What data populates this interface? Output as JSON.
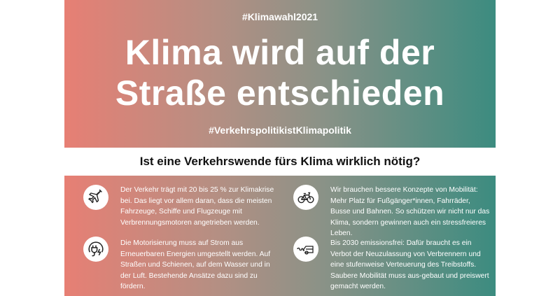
{
  "header": {
    "hashtag_top": "#Klimawahl2021",
    "title_line1": "Klima wird auf der",
    "title_line2": "Straße entschieden",
    "hashtag_bottom": "#VerkehrspolitikistKlimapolitik"
  },
  "banner": {
    "question": "Ist eine Verkehrswende fürs Klima wirklich nötig?"
  },
  "colors": {
    "gradient_left": "#e77f74",
    "gradient_right": "#3c8c80"
  },
  "items": [
    {
      "icon": "airplane-icon",
      "text": "Der Verkehr trägt mit 20 bis 25 % zur Klimakrise bei. Das liegt vor allem daran, dass die meisten Fahrzeuge, Schiffe und Flugzeuge mit Verbrennungsmotoren angetrieben werden."
    },
    {
      "icon": "electric-plug-icon",
      "text": "Die Motorisierung muss auf Strom aus Erneuerbaren Energien umgestellt werden. Auf Straßen und Schienen, auf dem Wasser und in der Luft. Bestehende Ansätze dazu sind zu fördern."
    },
    {
      "icon": "bicycle-icon",
      "text": "Wir brauchen bessere Konzepte von Mobilität: Mehr Platz für Fußgänger*innen, Fahrräder, Busse und Bahnen. So schützen wir nicht nur das Klima, sondern gewinnen auch ein stressfreieres Leben."
    },
    {
      "icon": "car-exhaust-icon",
      "text": "Bis 2030 emissionsfrei: Dafür braucht es ein Verbot der Neuzulassung von Verbrennern und eine stufenweise Verteuerung des Treibstoffs. Saubere Mobilität muss aus-gebaut und preiswert gemacht werden."
    }
  ]
}
